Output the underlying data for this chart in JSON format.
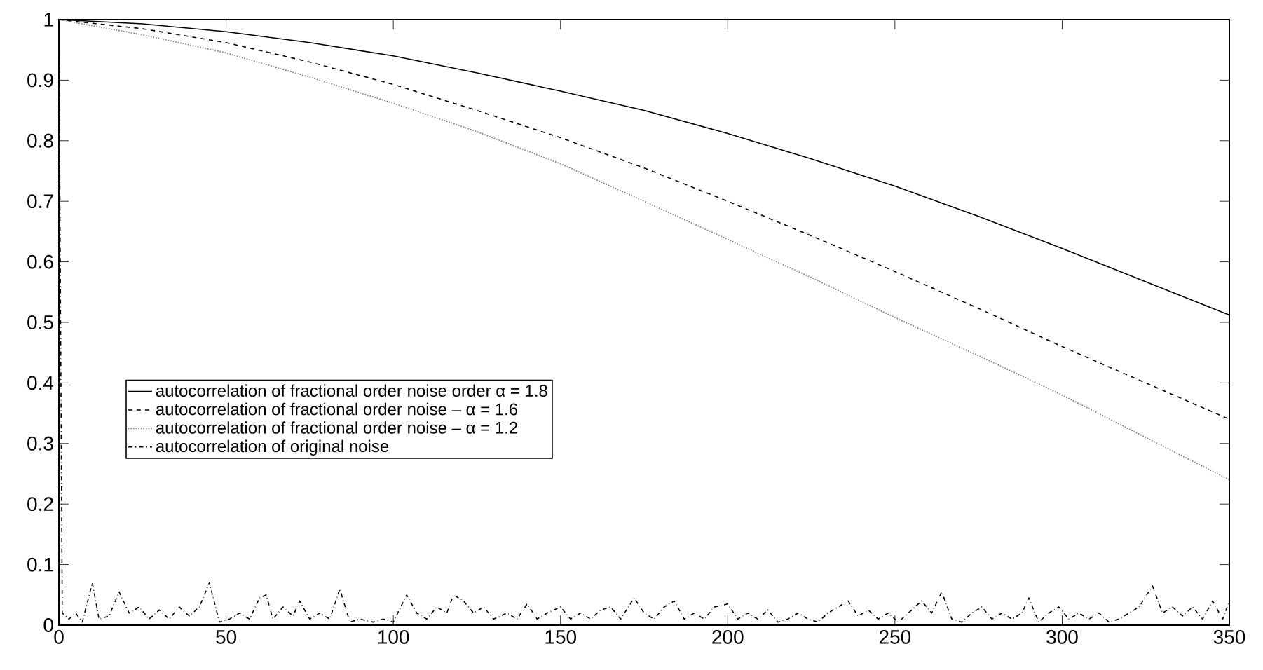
{
  "chart_data": {
    "type": "line",
    "xlim": [
      0,
      350
    ],
    "ylim": [
      0,
      1
    ],
    "xticks": [
      0,
      50,
      100,
      150,
      200,
      250,
      300,
      350
    ],
    "yticks": [
      0,
      0.1,
      0.2,
      0.3,
      0.4,
      0.5,
      0.6,
      0.7,
      0.8,
      0.9,
      1
    ],
    "legend": "left",
    "grid": false,
    "series": [
      {
        "name": "autocorrelation of fractional order noise order α = 1.8",
        "color": "#000000",
        "line_style": "solid",
        "x": [
          0,
          25,
          50,
          75,
          100,
          125,
          150,
          175,
          200,
          225,
          250,
          275,
          300,
          325,
          350
        ],
        "values": [
          1,
          0.993,
          0.98,
          0.962,
          0.94,
          0.912,
          0.882,
          0.85,
          0.812,
          0.77,
          0.725,
          0.675,
          0.622,
          0.567,
          0.512
        ]
      },
      {
        "name": "autocorrelation of fractional order noise – α = 1.6",
        "color": "#000000",
        "line_style": "dashed",
        "x": [
          0,
          25,
          50,
          75,
          100,
          125,
          150,
          175,
          200,
          225,
          250,
          275,
          300,
          325,
          350
        ],
        "values": [
          1,
          0.985,
          0.962,
          0.93,
          0.893,
          0.85,
          0.805,
          0.755,
          0.7,
          0.643,
          0.584,
          0.523,
          0.46,
          0.4,
          0.34
        ]
      },
      {
        "name": "autocorrelation of fractional order noise – α = 1.2",
        "color": "#777777",
        "line_style": "dotted",
        "x": [
          0,
          25,
          50,
          75,
          100,
          125,
          150,
          175,
          200,
          225,
          250,
          275,
          300,
          325,
          350
        ],
        "values": [
          1,
          0.975,
          0.945,
          0.905,
          0.862,
          0.815,
          0.762,
          0.7,
          0.637,
          0.574,
          0.508,
          0.445,
          0.38,
          0.31,
          0.24
        ]
      },
      {
        "name": "autocorrelation of original noise",
        "color": "#000000",
        "line_style": "dashdot",
        "x": [
          0,
          1,
          3,
          5,
          7,
          10,
          12,
          15,
          18,
          21,
          24,
          27,
          30,
          33,
          36,
          39,
          42,
          45,
          48,
          51,
          54,
          57,
          60,
          62,
          64,
          67,
          70,
          72,
          75,
          78,
          81,
          84,
          87,
          90,
          94,
          97,
          100,
          104,
          107,
          110,
          113,
          116,
          118,
          121,
          124,
          127,
          130,
          134,
          137,
          140,
          143,
          146,
          150,
          153,
          156,
          159,
          162,
          165,
          168,
          172,
          175,
          178,
          181,
          184,
          187,
          190,
          193,
          196,
          200,
          203,
          206,
          209,
          212,
          215,
          218,
          221,
          224,
          227,
          230,
          233,
          236,
          239,
          242,
          245,
          248,
          251,
          254,
          258,
          261,
          264,
          267,
          270,
          273,
          276,
          279,
          282,
          285,
          288,
          290,
          293,
          296,
          299,
          302,
          305,
          308,
          311,
          314,
          317,
          320,
          323,
          327,
          330,
          333,
          336,
          339,
          342,
          345,
          348,
          350
        ],
        "values": [
          1,
          0.02,
          0.01,
          0.02,
          0.005,
          0.07,
          0.01,
          0.015,
          0.055,
          0.02,
          0.03,
          0.01,
          0.025,
          0.01,
          0.03,
          0.015,
          0.03,
          0.07,
          0.005,
          0.01,
          0.02,
          0.01,
          0.045,
          0.05,
          0.01,
          0.03,
          0.015,
          0.04,
          0.01,
          0.02,
          0.01,
          0.06,
          0.005,
          0.01,
          0.005,
          0.01,
          0.005,
          0.05,
          0.02,
          0.01,
          0.03,
          0.02,
          0.05,
          0.04,
          0.02,
          0.03,
          0.01,
          0.02,
          0.01,
          0.035,
          0.01,
          0.02,
          0.03,
          0.01,
          0.02,
          0.01,
          0.025,
          0.03,
          0.01,
          0.045,
          0.02,
          0.01,
          0.03,
          0.04,
          0.01,
          0.02,
          0.01,
          0.03,
          0.035,
          0.01,
          0.02,
          0.01,
          0.025,
          0.005,
          0.01,
          0.02,
          0.01,
          0.005,
          0.02,
          0.03,
          0.04,
          0.015,
          0.025,
          0.01,
          0.02,
          0.005,
          0.02,
          0.04,
          0.02,
          0.055,
          0.01,
          0.005,
          0.02,
          0.03,
          0.01,
          0.02,
          0.01,
          0.02,
          0.045,
          0.005,
          0.02,
          0.03,
          0.01,
          0.02,
          0.01,
          0.02,
          0.005,
          0.01,
          0.02,
          0.03,
          0.065,
          0.02,
          0.03,
          0.015,
          0.03,
          0.01,
          0.04,
          0.01,
          0.04
        ]
      }
    ]
  }
}
